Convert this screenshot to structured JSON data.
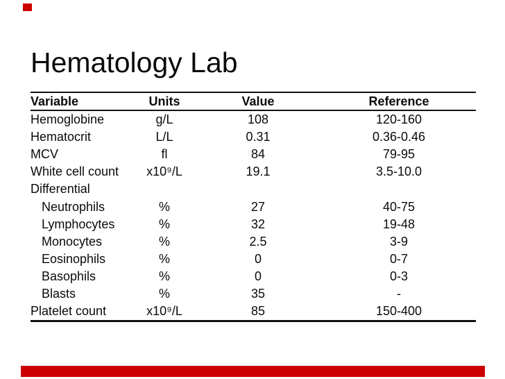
{
  "slide": {
    "title": "Hematology Lab",
    "accent_color": "#CC0000"
  },
  "table": {
    "columns": [
      "Variable",
      "Units",
      "Value",
      "Reference"
    ],
    "rows": [
      {
        "variable": "Hemoglobine",
        "indent": false,
        "units": "g/L",
        "value": "108",
        "reference": "120-160"
      },
      {
        "variable": "Hematocrit",
        "indent": false,
        "units": "L/L",
        "value": "0.31",
        "reference": "0.36-0.46"
      },
      {
        "variable": "MCV",
        "indent": false,
        "units": "fl",
        "value": "84",
        "reference": "79-95"
      },
      {
        "variable": "White cell count",
        "indent": false,
        "units": "x10⁹/L",
        "value": "19.1",
        "reference": "3.5-10.0"
      },
      {
        "variable": "Differential",
        "indent": false,
        "units": "",
        "value": "",
        "reference": ""
      },
      {
        "variable": "Neutrophils",
        "indent": true,
        "units": "%",
        "value": "27",
        "reference": "40-75"
      },
      {
        "variable": "Lymphocytes",
        "indent": true,
        "units": "%",
        "value": "32",
        "reference": "19-48"
      },
      {
        "variable": "Monocytes",
        "indent": true,
        "units": "%",
        "value": "2.5",
        "reference": "3-9"
      },
      {
        "variable": "Eosinophils",
        "indent": true,
        "units": "%",
        "value": "0",
        "reference": "0-7"
      },
      {
        "variable": "Basophils",
        "indent": true,
        "units": "%",
        "value": "0",
        "reference": "0-3"
      },
      {
        "variable": "Blasts",
        "indent": true,
        "units": "%",
        "value": "35",
        "reference": "-"
      },
      {
        "variable": "Platelet count",
        "indent": false,
        "units": "x10⁹/L",
        "value": "85",
        "reference": "150-400"
      }
    ]
  }
}
